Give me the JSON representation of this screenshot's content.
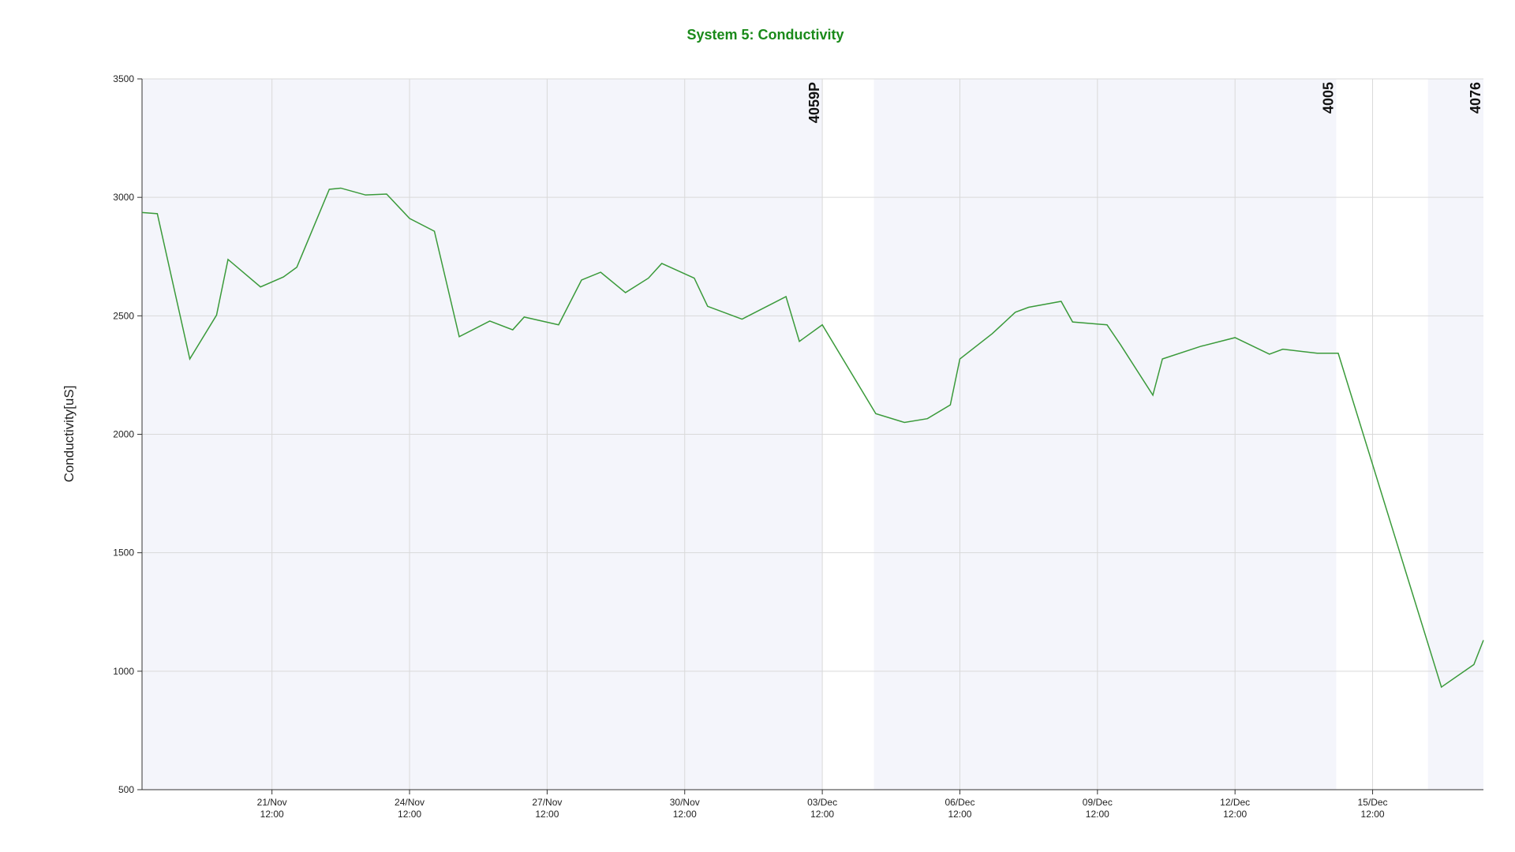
{
  "chart_data": {
    "type": "line",
    "title": "System 5: Conductivity",
    "y_label": "Conductivity[uS]",
    "x": [
      "18/Nov 16:00",
      "19/Nov 00:00",
      "19/Nov 17:00",
      "20/Nov 07:00",
      "20/Nov 13:00",
      "21/Nov 06:00",
      "21/Nov 18:00",
      "22/Nov 01:00",
      "22/Nov 18:00",
      "23/Nov 00:00",
      "23/Nov 13:00",
      "24/Nov 00:00",
      "24/Nov 12:00",
      "25/Nov 01:00",
      "25/Nov 14:00",
      "26/Nov 06:00",
      "26/Nov 18:00",
      "27/Nov 00:00",
      "27/Nov 18:00",
      "28/Nov 06:00",
      "28/Nov 16:00",
      "29/Nov 05:00",
      "29/Nov 17:00",
      "30/Nov 00:00",
      "30/Nov 17:00",
      "01/Dec 00:00",
      "01/Dec 18:00",
      "02/Dec 00:00",
      "02/Dec 17:00",
      "03/Dec 00:00",
      "03/Dec 12:00",
      "04/Dec 16:00",
      "05/Dec 07:00",
      "05/Dec 19:00",
      "06/Dec 07:00",
      "06/Dec 12:00",
      "07/Dec 05:00",
      "07/Dec 17:00",
      "08/Dec 00:00",
      "08/Dec 17:00",
      "08/Dec 23:00",
      "09/Dec 17:00",
      "10/Dec 00:00",
      "10/Dec 17:00",
      "10/Dec 22:00",
      "11/Dec 18:00",
      "12/Dec 12:00",
      "13/Dec 06:00",
      "13/Dec 13:00",
      "14/Dec 07:00",
      "14/Dec 18:00",
      "17/Dec 00:00",
      "17/Dec 17:00",
      "17/Dec 22:00"
    ],
    "series": [
      {
        "name": "Conductivity",
        "color": "#3a9a3a",
        "values": [
          2936,
          2931,
          2318,
          2503,
          2738,
          2622,
          2664,
          2705,
          3034,
          3039,
          3010,
          3014,
          2911,
          2857,
          2412,
          2478,
          2441,
          2495,
          2462,
          2651,
          2684,
          2598,
          2659,
          2721,
          2659,
          2540,
          2486,
          2511,
          2581,
          2392,
          2462,
          2087,
          2050,
          2066,
          2124,
          2318,
          2425,
          2515,
          2536,
          2561,
          2474,
          2462,
          2379,
          2165,
          2318,
          2371,
          2408,
          2338,
          2359,
          2342,
          2342,
          933,
          1028,
          1131
        ]
      }
    ],
    "xlim": [
      "18/Nov 16:00",
      "17/Dec 22:00"
    ],
    "xticks": [
      "21/Nov 12:00",
      "24/Nov 12:00",
      "27/Nov 12:00",
      "30/Nov 12:00",
      "03/Dec 12:00",
      "06/Dec 12:00",
      "09/Dec 12:00",
      "12/Dec 12:00",
      "15/Dec 12:00"
    ],
    "ylim": [
      500,
      3500
    ],
    "yticks": [
      500,
      1000,
      1500,
      2000,
      2500,
      3000,
      3500
    ],
    "grid": true,
    "annotations": [
      {
        "x": "03/Dec 12:00",
        "text": "4059P"
      },
      {
        "x": "14/Dec 17:00",
        "text": "4005"
      },
      {
        "x": "17/Dec 22:00",
        "text": "4076"
      }
    ],
    "shaded_spans": [
      [
        "18/Nov 16:00",
        "03/Dec 12:00"
      ],
      [
        "04/Dec 15:00",
        "14/Dec 17:00"
      ],
      [
        "16/Dec 17:00",
        "17/Dec 22:00"
      ]
    ]
  }
}
